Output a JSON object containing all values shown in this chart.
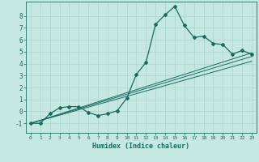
{
  "xlabel": "Humidex (Indice chaleur)",
  "bg_color": "#c5e8e2",
  "grid_color": "#a8d4cc",
  "line_color": "#1a6b60",
  "xlim": [
    -0.5,
    23.5
  ],
  "ylim": [
    -1.8,
    9.2
  ],
  "xticks": [
    0,
    1,
    2,
    3,
    4,
    5,
    6,
    7,
    8,
    9,
    10,
    11,
    12,
    13,
    14,
    15,
    16,
    17,
    18,
    19,
    20,
    21,
    22,
    23
  ],
  "yticks": [
    -1,
    0,
    1,
    2,
    3,
    4,
    5,
    6,
    7,
    8
  ],
  "main_x": [
    0,
    1,
    2,
    3,
    4,
    5,
    6,
    7,
    8,
    9,
    10,
    11,
    12,
    13,
    14,
    15,
    16,
    17,
    18,
    19,
    20,
    21,
    22,
    23
  ],
  "main_y": [
    -1,
    -1,
    -0.2,
    0.3,
    0.4,
    0.4,
    -0.1,
    -0.35,
    -0.2,
    0.05,
    1.1,
    3.1,
    4.1,
    7.3,
    8.1,
    8.8,
    7.2,
    6.2,
    6.3,
    5.7,
    5.6,
    4.8,
    5.1,
    4.8
  ],
  "line1_x": [
    0,
    23
  ],
  "line1_y": [
    -1.0,
    4.6
  ],
  "line2_x": [
    0,
    23
  ],
  "line2_y": [
    -1.0,
    4.9
  ],
  "line3_x": [
    0,
    23
  ],
  "line3_y": [
    -1.0,
    4.2
  ]
}
